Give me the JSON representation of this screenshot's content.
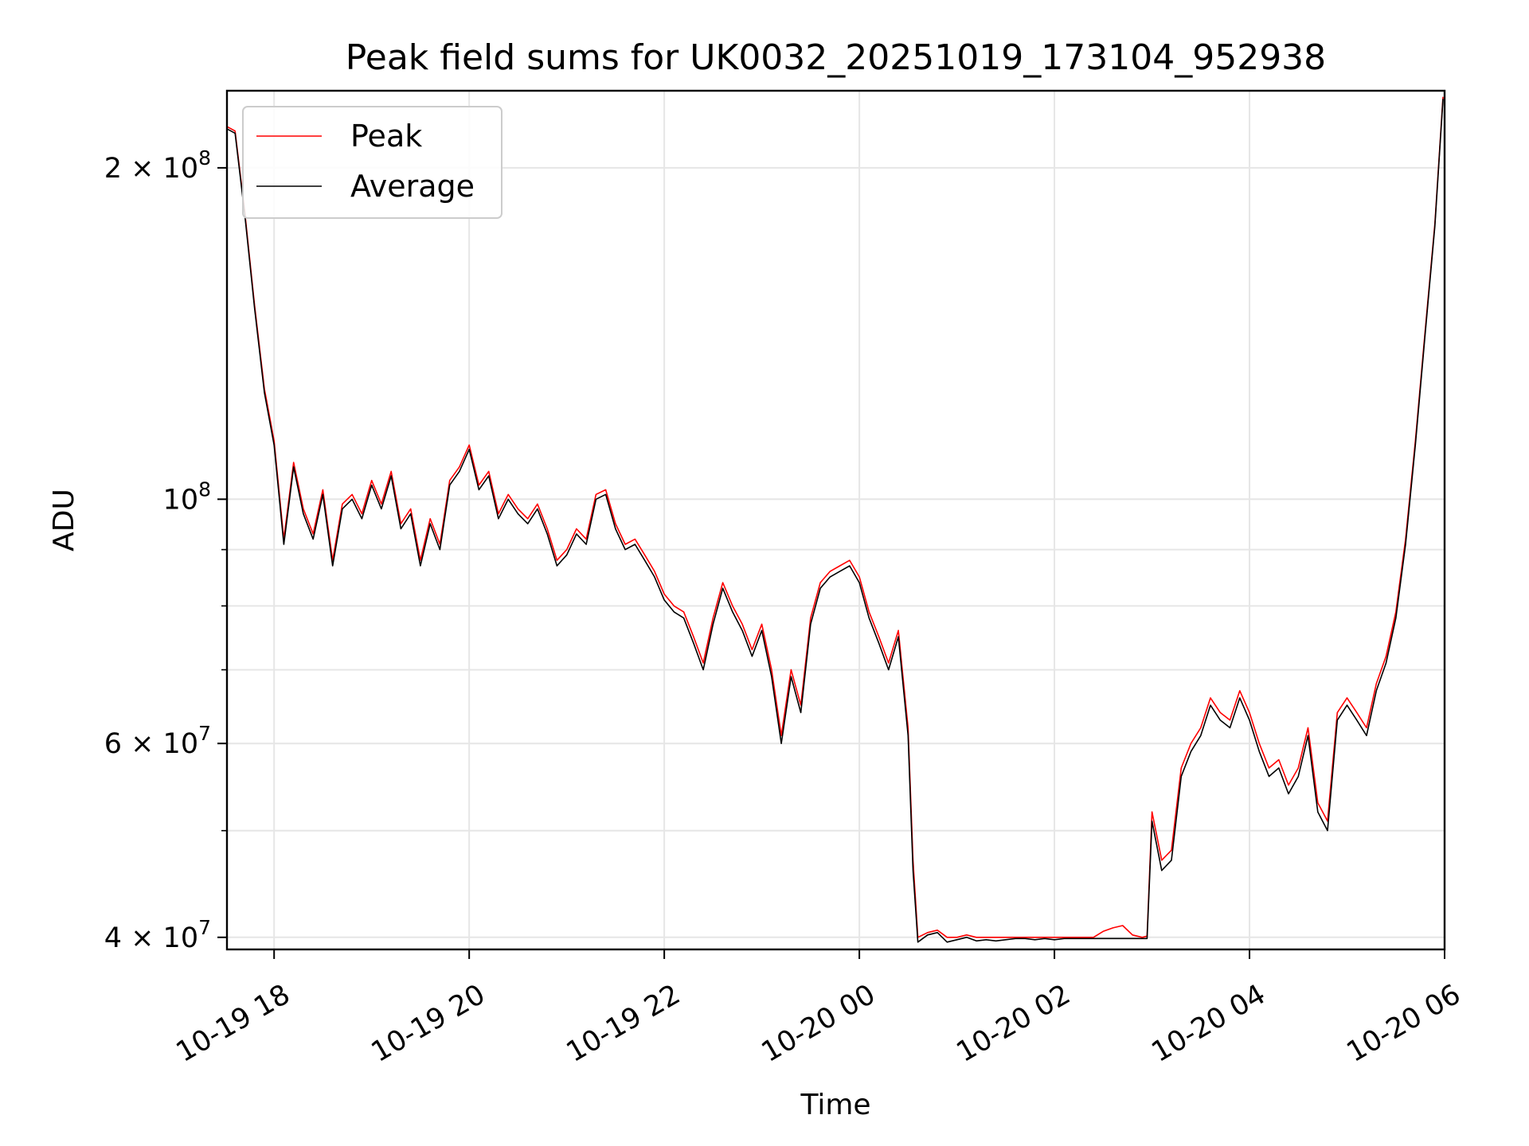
{
  "chart_data": {
    "type": "line",
    "title": "Peak field sums for UK0032_20251019_173104_952938",
    "xlabel": "Time",
    "ylabel": "ADU",
    "yscale": "log",
    "grid": true,
    "legend": "top-left",
    "xlim": [
      "2025-10-19 17:31",
      "2025-10-20 06:00"
    ],
    "ylim": [
      39000000,
      235000000
    ],
    "x_ticks": [
      "2025-10-19 18:00",
      "2025-10-19 20:00",
      "2025-10-19 22:00",
      "2025-10-20 00:00",
      "2025-10-20 02:00",
      "2025-10-20 04:00",
      "2025-10-20 06:00"
    ],
    "x_tick_labels": [
      "10-19 18",
      "10-19 20",
      "10-19 22",
      "10-20 00",
      "10-20 02",
      "10-20 04",
      "10-20 06"
    ],
    "y_ticks": [
      {
        "value": 40000000,
        "mantissa": "4",
        "exponent": "7"
      },
      {
        "value": 60000000,
        "mantissa": "6",
        "exponent": "7"
      },
      {
        "value": 100000000,
        "mantissa": "",
        "exponent": "8"
      },
      {
        "value": 200000000,
        "mantissa": "2",
        "exponent": "8"
      }
    ],
    "y_minor_ticks": [
      50000000,
      70000000,
      80000000,
      90000000
    ],
    "series": [
      {
        "name": "Peak",
        "color": "#ff0000",
        "x": [
          "2025-10-19 17:31",
          "2025-10-19 17:36",
          "2025-10-19 17:42",
          "2025-10-19 17:48",
          "2025-10-19 17:54",
          "2025-10-19 18:00",
          "2025-10-19 18:06",
          "2025-10-19 18:12",
          "2025-10-19 18:18",
          "2025-10-19 18:24",
          "2025-10-19 18:30",
          "2025-10-19 18:36",
          "2025-10-19 18:42",
          "2025-10-19 18:48",
          "2025-10-19 18:54",
          "2025-10-19 19:00",
          "2025-10-19 19:06",
          "2025-10-19 19:12",
          "2025-10-19 19:18",
          "2025-10-19 19:24",
          "2025-10-19 19:30",
          "2025-10-19 19:36",
          "2025-10-19 19:42",
          "2025-10-19 19:48",
          "2025-10-19 19:54",
          "2025-10-19 20:00",
          "2025-10-19 20:06",
          "2025-10-19 20:12",
          "2025-10-19 20:18",
          "2025-10-19 20:24",
          "2025-10-19 20:30",
          "2025-10-19 20:36",
          "2025-10-19 20:42",
          "2025-10-19 20:48",
          "2025-10-19 20:54",
          "2025-10-19 21:00",
          "2025-10-19 21:06",
          "2025-10-19 21:12",
          "2025-10-19 21:18",
          "2025-10-19 21:24",
          "2025-10-19 21:30",
          "2025-10-19 21:36",
          "2025-10-19 21:42",
          "2025-10-19 21:48",
          "2025-10-19 21:54",
          "2025-10-19 22:00",
          "2025-10-19 22:06",
          "2025-10-19 22:12",
          "2025-10-19 22:18",
          "2025-10-19 22:24",
          "2025-10-19 22:30",
          "2025-10-19 22:36",
          "2025-10-19 22:42",
          "2025-10-19 22:48",
          "2025-10-19 22:54",
          "2025-10-19 23:00",
          "2025-10-19 23:06",
          "2025-10-19 23:12",
          "2025-10-19 23:18",
          "2025-10-19 23:24",
          "2025-10-19 23:30",
          "2025-10-19 23:36",
          "2025-10-19 23:42",
          "2025-10-19 23:48",
          "2025-10-19 23:54",
          "2025-10-20 00:00",
          "2025-10-20 00:06",
          "2025-10-20 00:12",
          "2025-10-20 00:18",
          "2025-10-20 00:24",
          "2025-10-20 00:30",
          "2025-10-20 00:33",
          "2025-10-20 00:36",
          "2025-10-20 00:42",
          "2025-10-20 00:48",
          "2025-10-20 00:54",
          "2025-10-20 01:00",
          "2025-10-20 01:06",
          "2025-10-20 01:12",
          "2025-10-20 01:18",
          "2025-10-20 01:24",
          "2025-10-20 01:30",
          "2025-10-20 01:36",
          "2025-10-20 01:42",
          "2025-10-20 01:48",
          "2025-10-20 01:54",
          "2025-10-20 02:00",
          "2025-10-20 02:06",
          "2025-10-20 02:12",
          "2025-10-20 02:18",
          "2025-10-20 02:24",
          "2025-10-20 02:30",
          "2025-10-20 02:36",
          "2025-10-20 02:42",
          "2025-10-20 02:48",
          "2025-10-20 02:54",
          "2025-10-20 02:57",
          "2025-10-20 03:00",
          "2025-10-20 03:06",
          "2025-10-20 03:12",
          "2025-10-20 03:18",
          "2025-10-20 03:24",
          "2025-10-20 03:30",
          "2025-10-20 03:36",
          "2025-10-20 03:42",
          "2025-10-20 03:48",
          "2025-10-20 03:54",
          "2025-10-20 04:00",
          "2025-10-20 04:06",
          "2025-10-20 04:12",
          "2025-10-20 04:18",
          "2025-10-20 04:24",
          "2025-10-20 04:30",
          "2025-10-20 04:36",
          "2025-10-20 04:42",
          "2025-10-20 04:48",
          "2025-10-20 04:54",
          "2025-10-20 05:00",
          "2025-10-20 05:06",
          "2025-10-20 05:12",
          "2025-10-20 05:18",
          "2025-10-20 05:24",
          "2025-10-20 05:30",
          "2025-10-20 05:36",
          "2025-10-20 05:42",
          "2025-10-20 05:48",
          "2025-10-20 05:54",
          "2025-10-20 05:59"
        ],
        "values": [
          218000000,
          216000000,
          182000000,
          150000000,
          126000000,
          113000000,
          92000000,
          108000000,
          98000000,
          93000000,
          102000000,
          88000000,
          99000000,
          101000000,
          97000000,
          104000000,
          99000000,
          106000000,
          95000000,
          98000000,
          88000000,
          96000000,
          91000000,
          104000000,
          107000000,
          112000000,
          103000000,
          106000000,
          97000000,
          101000000,
          98000000,
          96000000,
          99000000,
          94000000,
          88000000,
          90000000,
          94000000,
          92000000,
          101000000,
          102000000,
          95000000,
          91000000,
          92000000,
          89000000,
          86000000,
          82000000,
          80000000,
          79000000,
          75000000,
          71000000,
          78000000,
          84000000,
          80000000,
          77000000,
          73000000,
          77000000,
          70000000,
          61000000,
          70000000,
          65000000,
          78000000,
          84000000,
          86000000,
          87000000,
          88000000,
          85000000,
          79000000,
          75000000,
          71000000,
          76000000,
          62000000,
          47000000,
          40000000,
          40400000,
          40600000,
          40000000,
          40000000,
          40200000,
          40000000,
          40000000,
          40000000,
          40000000,
          40000000,
          40000000,
          40000000,
          40000000,
          40000000,
          40000000,
          40000000,
          40000000,
          40000000,
          40500000,
          40800000,
          41000000,
          40200000,
          40000000,
          40100000,
          52000000,
          47000000,
          48000000,
          57000000,
          60000000,
          62000000,
          66000000,
          64000000,
          63000000,
          67000000,
          64000000,
          60000000,
          57000000,
          58000000,
          55000000,
          57000000,
          62000000,
          53000000,
          51000000,
          64000000,
          66000000,
          64000000,
          62000000,
          68000000,
          72000000,
          79000000,
          92000000,
          113000000,
          142000000,
          178000000,
          232000000
        ]
      },
      {
        "name": "Average",
        "color": "#000000",
        "x": [
          "2025-10-19 17:31",
          "2025-10-19 17:36",
          "2025-10-19 17:42",
          "2025-10-19 17:48",
          "2025-10-19 17:54",
          "2025-10-19 18:00",
          "2025-10-19 18:06",
          "2025-10-19 18:12",
          "2025-10-19 18:18",
          "2025-10-19 18:24",
          "2025-10-19 18:30",
          "2025-10-19 18:36",
          "2025-10-19 18:42",
          "2025-10-19 18:48",
          "2025-10-19 18:54",
          "2025-10-19 19:00",
          "2025-10-19 19:06",
          "2025-10-19 19:12",
          "2025-10-19 19:18",
          "2025-10-19 19:24",
          "2025-10-19 19:30",
          "2025-10-19 19:36",
          "2025-10-19 19:42",
          "2025-10-19 19:48",
          "2025-10-19 19:54",
          "2025-10-19 20:00",
          "2025-10-19 20:06",
          "2025-10-19 20:12",
          "2025-10-19 20:18",
          "2025-10-19 20:24",
          "2025-10-19 20:30",
          "2025-10-19 20:36",
          "2025-10-19 20:42",
          "2025-10-19 20:48",
          "2025-10-19 20:54",
          "2025-10-19 21:00",
          "2025-10-19 21:06",
          "2025-10-19 21:12",
          "2025-10-19 21:18",
          "2025-10-19 21:24",
          "2025-10-19 21:30",
          "2025-10-19 21:36",
          "2025-10-19 21:42",
          "2025-10-19 21:48",
          "2025-10-19 21:54",
          "2025-10-19 22:00",
          "2025-10-19 22:06",
          "2025-10-19 22:12",
          "2025-10-19 22:18",
          "2025-10-19 22:24",
          "2025-10-19 22:30",
          "2025-10-19 22:36",
          "2025-10-19 22:42",
          "2025-10-19 22:48",
          "2025-10-19 22:54",
          "2025-10-19 23:00",
          "2025-10-19 23:06",
          "2025-10-19 23:12",
          "2025-10-19 23:18",
          "2025-10-19 23:24",
          "2025-10-19 23:30",
          "2025-10-19 23:36",
          "2025-10-19 23:42",
          "2025-10-19 23:48",
          "2025-10-19 23:54",
          "2025-10-20 00:00",
          "2025-10-20 00:06",
          "2025-10-20 00:12",
          "2025-10-20 00:18",
          "2025-10-20 00:24",
          "2025-10-20 00:30",
          "2025-10-20 00:33",
          "2025-10-20 00:36",
          "2025-10-20 00:42",
          "2025-10-20 00:48",
          "2025-10-20 00:54",
          "2025-10-20 01:00",
          "2025-10-20 01:06",
          "2025-10-20 01:12",
          "2025-10-20 01:18",
          "2025-10-20 01:24",
          "2025-10-20 01:30",
          "2025-10-20 01:36",
          "2025-10-20 01:42",
          "2025-10-20 01:48",
          "2025-10-20 01:54",
          "2025-10-20 02:00",
          "2025-10-20 02:06",
          "2025-10-20 02:12",
          "2025-10-20 02:18",
          "2025-10-20 02:24",
          "2025-10-20 02:30",
          "2025-10-20 02:36",
          "2025-10-20 02:42",
          "2025-10-20 02:48",
          "2025-10-20 02:54",
          "2025-10-20 02:57",
          "2025-10-20 03:00",
          "2025-10-20 03:06",
          "2025-10-20 03:12",
          "2025-10-20 03:18",
          "2025-10-20 03:24",
          "2025-10-20 03:30",
          "2025-10-20 03:36",
          "2025-10-20 03:42",
          "2025-10-20 03:48",
          "2025-10-20 03:54",
          "2025-10-20 04:00",
          "2025-10-20 04:06",
          "2025-10-20 04:12",
          "2025-10-20 04:18",
          "2025-10-20 04:24",
          "2025-10-20 04:30",
          "2025-10-20 04:36",
          "2025-10-20 04:42",
          "2025-10-20 04:48",
          "2025-10-20 04:54",
          "2025-10-20 05:00",
          "2025-10-20 05:06",
          "2025-10-20 05:12",
          "2025-10-20 05:18",
          "2025-10-20 05:24",
          "2025-10-20 05:30",
          "2025-10-20 05:36",
          "2025-10-20 05:42",
          "2025-10-20 05:48",
          "2025-10-20 05:54",
          "2025-10-20 05:59"
        ],
        "values": [
          217000000,
          215000000,
          181000000,
          149000000,
          125000000,
          112000000,
          91000000,
          107000000,
          97000000,
          92000000,
          101000000,
          87000000,
          98000000,
          100000000,
          96000000,
          103000000,
          98000000,
          105000000,
          94000000,
          97000000,
          87000000,
          95000000,
          90000000,
          103000000,
          106000000,
          111000000,
          102000000,
          105000000,
          96000000,
          100000000,
          97000000,
          95000000,
          98000000,
          93000000,
          87000000,
          89000000,
          93000000,
          91000000,
          100000000,
          101000000,
          94000000,
          90000000,
          91000000,
          88000000,
          85000000,
          81000000,
          79000000,
          78000000,
          74000000,
          70000000,
          77000000,
          83000000,
          79000000,
          76000000,
          72000000,
          76000000,
          69000000,
          60000000,
          69000000,
          64000000,
          77000000,
          83000000,
          85000000,
          86000000,
          87000000,
          84000000,
          78000000,
          74000000,
          70000000,
          75000000,
          61000000,
          46000000,
          39600000,
          40200000,
          40400000,
          39600000,
          39800000,
          40000000,
          39700000,
          39800000,
          39700000,
          39800000,
          39900000,
          39900000,
          39800000,
          39900000,
          39800000,
          39900000,
          39900000,
          39900000,
          39900000,
          39900000,
          39900000,
          39900000,
          39900000,
          39900000,
          39900000,
          51000000,
          46000000,
          47000000,
          56000000,
          59000000,
          61000000,
          65000000,
          63000000,
          62000000,
          66000000,
          63000000,
          59000000,
          56000000,
          57000000,
          54000000,
          56000000,
          61000000,
          52000000,
          50000000,
          63000000,
          65000000,
          63000000,
          61000000,
          67000000,
          71000000,
          78000000,
          91000000,
          112000000,
          141000000,
          177000000,
          231000000
        ]
      }
    ]
  }
}
